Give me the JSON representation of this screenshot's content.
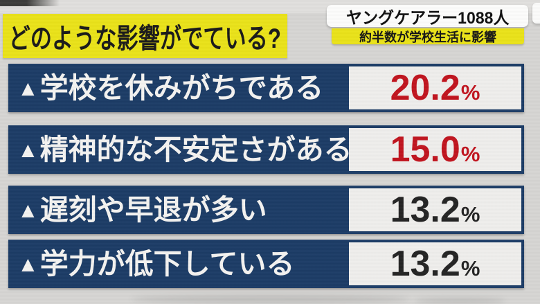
{
  "header": {
    "title": "どのような影響がでている?",
    "badge": "ヤングケアラー1088人",
    "badge_sub": "約半数が学校生活に影響"
  },
  "rows": [
    {
      "marker": "▲",
      "label": "学校を休みがちである",
      "value": "20.2",
      "unit": "%",
      "value_style": "color:#c1141f"
    },
    {
      "marker": "▲",
      "label": "精神的な不安定さがある",
      "value": "15.0",
      "unit": "%",
      "value_style": "color:#c1141f"
    },
    {
      "marker": "▲",
      "label": "遅刻や早退が多い",
      "value": "13.2",
      "unit": "%",
      "value_style": "color:#242424"
    },
    {
      "marker": "▲",
      "label": "学力が低下している",
      "value": "13.2",
      "unit": "%",
      "value_style": "color:#242424"
    }
  ],
  "chart_data": {
    "type": "table",
    "title": "どのような影響がでている?",
    "subtitle": "ヤングケアラー1088人 / 約半数が学校生活に影響",
    "categories": [
      "学校を休みがちである",
      "精神的な不安定さがある",
      "遅刻や早退が多い",
      "学力が低下している"
    ],
    "values": [
      20.2,
      15.0,
      13.2,
      13.2
    ],
    "unit": "%",
    "highlighted_values": [
      20.2,
      15.0
    ],
    "layout_hints": "four horizontal navy bands of equal length with value boxes at right; top two values in red, bottom two in black"
  },
  "colors": {
    "background": "#d6d5d3",
    "accent_yellow": "#eae219",
    "bar_navy": "#1c3c66",
    "value_box": "#efeeec",
    "value_red": "#c1141f",
    "value_black": "#242424",
    "label_white": "#f4f3f1"
  }
}
